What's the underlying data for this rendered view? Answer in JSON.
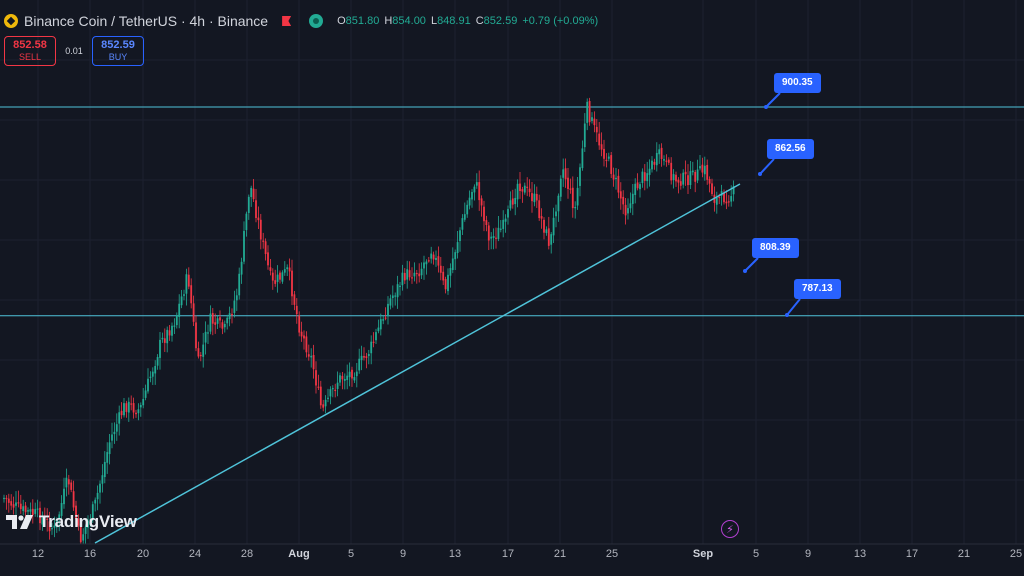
{
  "header": {
    "title": "Binance Coin / TetherUS · 4h · Binance",
    "ohlc": [
      {
        "k": "O",
        "v": "851.80"
      },
      {
        "k": "H",
        "v": "854.00"
      },
      {
        "k": "L",
        "v": "848.91"
      },
      {
        "k": "C",
        "v": "852.59"
      },
      {
        "k": "",
        "v": "+0.79 (+0.09%)"
      }
    ]
  },
  "trade": {
    "sell_price": "852.58",
    "sell_label": "SELL",
    "spread": "0.01",
    "buy_price": "852.59",
    "buy_label": "BUY"
  },
  "watermark": "TradingView",
  "levels": [
    "900.35",
    "862.56",
    "808.39",
    "787.13"
  ],
  "x_axis": {
    "ticks": [
      "12",
      "16",
      "20",
      "24",
      "28",
      "Aug",
      "5",
      "9",
      "13",
      "17",
      "21",
      "25",
      "Sep",
      "5",
      "9",
      "13",
      "17",
      "21",
      "25"
    ],
    "bold_ticks": [
      "Aug",
      "Sep"
    ]
  },
  "colors": {
    "background": "#131722",
    "up": "#22ab94",
    "down": "#f23645",
    "trendline": "#4fc3d9",
    "label": "#2962ff"
  },
  "icons": {
    "flash": "lightning-icon",
    "exchange": "bnb-icon"
  },
  "chart_data": {
    "type": "candlestick",
    "title": "Binance Coin / TetherUS · 4h · Binance",
    "x_range": [
      "Jul 10",
      "Sep 25"
    ],
    "y_unit": "USDT",
    "horizontal_levels": [
      900.35,
      862.56,
      808.39,
      787.13
    ],
    "trendline": "rising support from Jul 16 to Sep 3",
    "last_close": 852.59,
    "swing_points": [
      {
        "date": "Jul 12",
        "price": 600
      },
      {
        "date": "Jul 16",
        "price": 590
      },
      {
        "date": "Jul 24",
        "price": 790
      },
      {
        "date": "Jul 28",
        "price": 855
      },
      {
        "date": "Aug 2",
        "price": 790
      },
      {
        "date": "Aug 4",
        "price": 700
      },
      {
        "date": "Aug 8",
        "price": 760
      },
      {
        "date": "Aug 12",
        "price": 800
      },
      {
        "date": "Aug 14",
        "price": 850
      },
      {
        "date": "Aug 18",
        "price": 820
      },
      {
        "date": "Aug 21",
        "price": 825
      },
      {
        "date": "Aug 23",
        "price": 905
      },
      {
        "date": "Aug 25",
        "price": 860
      },
      {
        "date": "Aug 28",
        "price": 858
      },
      {
        "date": "Sep 1",
        "price": 845
      },
      {
        "date": "Sep 3",
        "price": 852.59
      }
    ]
  }
}
